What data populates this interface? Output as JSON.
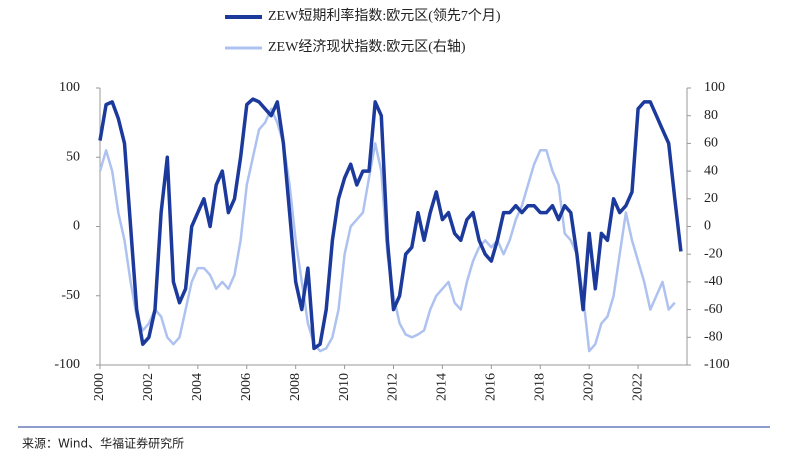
{
  "chart_data": {
    "type": "line",
    "x": [
      2000,
      2000.25,
      2000.5,
      2000.75,
      2001,
      2001.25,
      2001.5,
      2001.75,
      2002,
      2002.25,
      2002.5,
      2002.75,
      2003,
      2003.25,
      2003.5,
      2003.75,
      2004,
      2004.25,
      2004.5,
      2004.75,
      2005,
      2005.25,
      2005.5,
      2005.75,
      2006,
      2006.25,
      2006.5,
      2006.75,
      2007,
      2007.25,
      2007.5,
      2007.75,
      2008,
      2008.25,
      2008.5,
      2008.75,
      2009,
      2009.25,
      2009.5,
      2009.75,
      2010,
      2010.25,
      2010.5,
      2010.75,
      2011,
      2011.25,
      2011.5,
      2011.75,
      2012,
      2012.25,
      2012.5,
      2012.75,
      2013,
      2013.25,
      2013.5,
      2013.75,
      2014,
      2014.25,
      2014.5,
      2014.75,
      2015,
      2015.25,
      2015.5,
      2015.75,
      2016,
      2016.25,
      2016.5,
      2016.75,
      2017,
      2017.25,
      2017.5,
      2017.75,
      2018,
      2018.25,
      2018.5,
      2018.75,
      2019,
      2019.25,
      2019.5,
      2019.75,
      2020,
      2020.25,
      2020.5,
      2020.75,
      2021,
      2021.25,
      2021.5,
      2021.75,
      2022,
      2022.25,
      2022.5,
      2022.75,
      2023,
      2023.25,
      2023.5,
      2023.75
    ],
    "series": [
      {
        "name": "ZEW短期利率指数:欧元区(领先7个月)",
        "color": "#1c3a9c",
        "axis": "y",
        "values": [
          62,
          88,
          90,
          78,
          60,
          0,
          -60,
          -85,
          -80,
          -60,
          10,
          50,
          -40,
          -55,
          -45,
          0,
          10,
          20,
          0,
          30,
          40,
          10,
          20,
          50,
          88,
          92,
          90,
          85,
          80,
          90,
          60,
          10,
          -40,
          -60,
          -30,
          -88,
          -85,
          -60,
          -10,
          20,
          35,
          45,
          30,
          40,
          40,
          90,
          80,
          -10,
          -60,
          -50,
          -20,
          -15,
          10,
          -10,
          10,
          25,
          5,
          10,
          -5,
          -10,
          5,
          10,
          -10,
          -20,
          -25,
          -10,
          10,
          10,
          15,
          10,
          15,
          15,
          10,
          10,
          15,
          5,
          15,
          10,
          -20,
          -60,
          -5,
          -45,
          -5,
          -10,
          20,
          10,
          15,
          25,
          85,
          90,
          90,
          80,
          70,
          60,
          20,
          -18
        ]
      },
      {
        "name": "ZEW经济现状指数:欧元区(右轴)",
        "color": "#aec2f0",
        "axis": "y2",
        "values": [
          40,
          55,
          40,
          10,
          -10,
          -40,
          -65,
          -75,
          -70,
          -60,
          -65,
          -80,
          -85,
          -80,
          -60,
          -40,
          -30,
          -30,
          -35,
          -45,
          -40,
          -45,
          -35,
          -10,
          30,
          50,
          70,
          75,
          85,
          75,
          60,
          30,
          -10,
          -40,
          -70,
          -85,
          -90,
          -88,
          -80,
          -60,
          -20,
          0,
          5,
          10,
          35,
          60,
          40,
          -20,
          -50,
          -70,
          -78,
          -80,
          -78,
          -75,
          -60,
          -50,
          -45,
          -40,
          -55,
          -60,
          -40,
          -25,
          -15,
          -10,
          -15,
          -10,
          -20,
          -10,
          5,
          15,
          30,
          45,
          55,
          55,
          40,
          30,
          -5,
          -10,
          -20,
          -50,
          -90,
          -85,
          -70,
          -65,
          -50,
          -20,
          10,
          -10,
          -25,
          -40,
          -60,
          -50,
          -40,
          -60,
          -55,
          null
        ]
      }
    ],
    "xlim": [
      2000,
      2024
    ],
    "xticks": [
      2000,
      2002,
      2004,
      2006,
      2008,
      2010,
      2012,
      2014,
      2016,
      2018,
      2020,
      2022
    ],
    "ylim": [
      -100,
      100
    ],
    "yticks": [
      100,
      50,
      0,
      -50,
      -100
    ],
    "y2lim": [
      -100,
      100
    ],
    "y2ticks": [
      100,
      80,
      60,
      40,
      20,
      0,
      -20,
      -40,
      -60,
      -80,
      -100
    ],
    "source": "来源：Wind、华福证券研究所"
  }
}
